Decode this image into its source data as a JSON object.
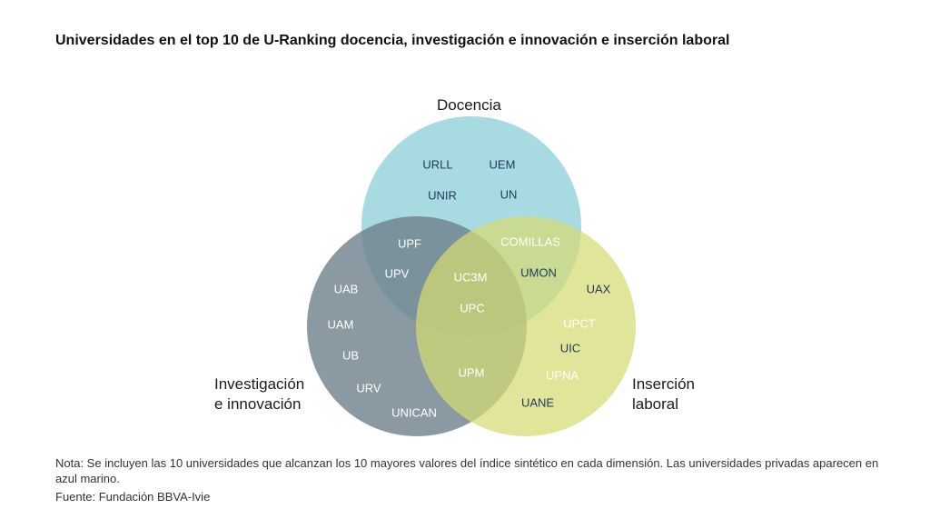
{
  "title": "Universidades en el top 10 de U-Ranking docencia, investigación e innovación e inserción laboral",
  "sets": {
    "docencia": {
      "label": "Docencia",
      "color": "#86ccd6"
    },
    "investigacion": {
      "label_line1": "Investigación",
      "label_line2": "e innovación",
      "color": "#6d7f8b"
    },
    "insercion": {
      "label_line1": "Inserción",
      "label_line2": "laboral",
      "color": "#d5db73"
    }
  },
  "colors": {
    "private": "#1f3a5a",
    "public": "#ffffff"
  },
  "universities": [
    {
      "name": "URLL",
      "region": "docencia",
      "private": true
    },
    {
      "name": "UEM",
      "region": "docencia",
      "private": true
    },
    {
      "name": "UNIR",
      "region": "docencia",
      "private": true
    },
    {
      "name": "UN",
      "region": "docencia",
      "private": true
    },
    {
      "name": "UPF",
      "region": "docencia-investigacion",
      "private": false
    },
    {
      "name": "UPV",
      "region": "docencia-investigacion",
      "private": false
    },
    {
      "name": "COMILLAS",
      "region": "docencia-insercion",
      "private": false
    },
    {
      "name": "UMON",
      "region": "docencia-insercion",
      "private": true
    },
    {
      "name": "UC3M",
      "region": "all",
      "private": false
    },
    {
      "name": "UPC",
      "region": "all",
      "private": false
    },
    {
      "name": "UAB",
      "region": "investigacion",
      "private": false
    },
    {
      "name": "UAM",
      "region": "investigacion",
      "private": false
    },
    {
      "name": "UB",
      "region": "investigacion",
      "private": false
    },
    {
      "name": "URV",
      "region": "investigacion",
      "private": false
    },
    {
      "name": "UNICAN",
      "region": "investigacion",
      "private": false
    },
    {
      "name": "UPM",
      "region": "investigacion-insercion",
      "private": false
    },
    {
      "name": "UAX",
      "region": "insercion",
      "private": true
    },
    {
      "name": "UPCT",
      "region": "insercion",
      "private": false
    },
    {
      "name": "UIC",
      "region": "insercion",
      "private": true
    },
    {
      "name": "UPNA",
      "region": "insercion",
      "private": false
    },
    {
      "name": "UANE",
      "region": "insercion",
      "private": true
    }
  ],
  "note": "Nota: Se incluyen las 10 universidades que alcanzan los 10 mayores valores del índice sintético en cada dimensión. Las universidades privadas aparecen en azul marino.",
  "source": "Fuente: Fundación BBVA-Ivie"
}
